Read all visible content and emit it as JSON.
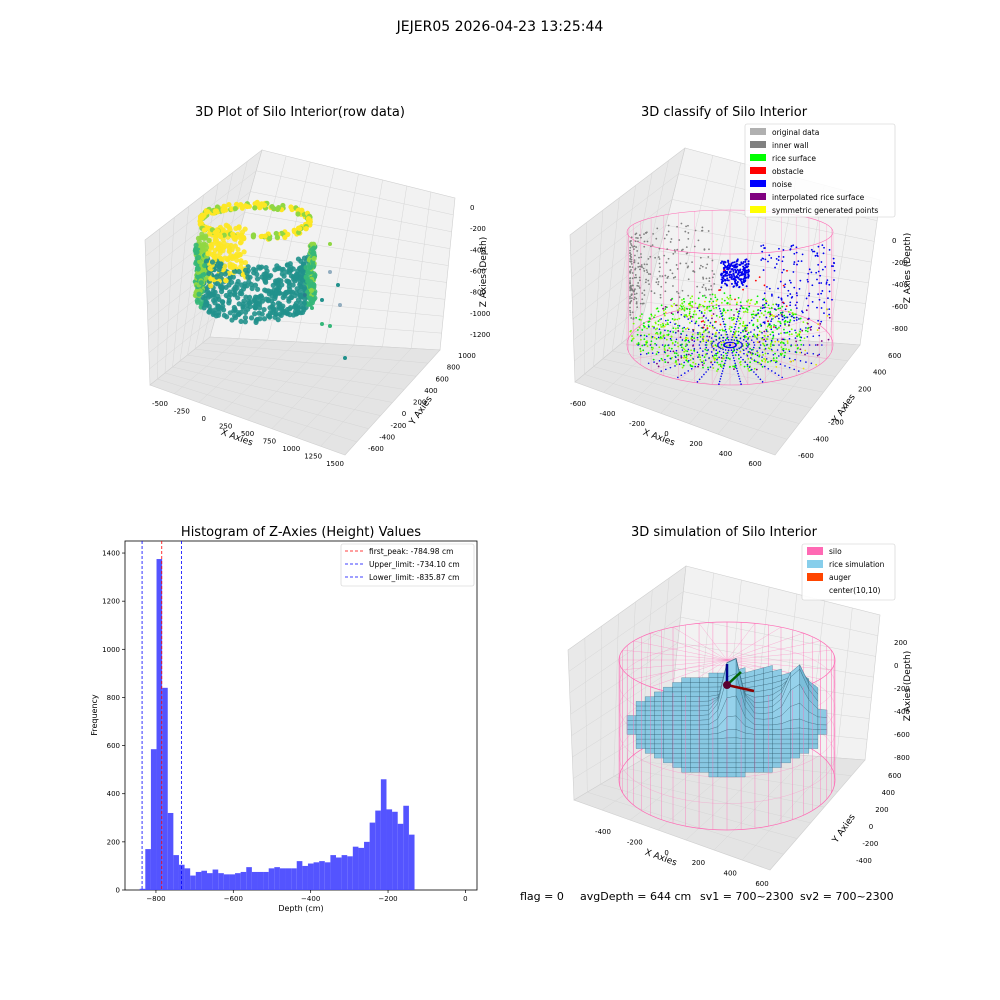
{
  "suptitle": "JEJER05 2026-04-23 13:25:44",
  "footer": {
    "flag": "flag = 0",
    "avg_depth": "avgDepth = 644 cm",
    "sv1": "sv1 = 700~2300",
    "sv2": "sv2 = 700~2300"
  },
  "chart_data": [
    {
      "id": "raw",
      "type": "scatter",
      "projection": "3d",
      "title": "3D Plot of Silo Interior(row data)",
      "xlabel": "X Axies",
      "ylabel": "Y Axies",
      "zlabel": "Z Axies (Depth)",
      "x_ticks": [
        -500,
        -250,
        0,
        250,
        500,
        750,
        1000,
        1250,
        1500
      ],
      "y_ticks": [
        -600,
        -400,
        -200,
        0,
        200,
        400,
        600,
        800,
        1000
      ],
      "z_ticks": [
        0,
        -200,
        -400,
        -600,
        -800,
        -1000,
        -1200
      ],
      "colormap": "viridis",
      "point_colors": [
        "#440154",
        "#31688e",
        "#21918c",
        "#35b779",
        "#90d743",
        "#fde725"
      ]
    },
    {
      "id": "classify",
      "type": "scatter",
      "projection": "3d",
      "title": "3D classify of Silo Interior",
      "xlabel": "X Axies",
      "ylabel": "Y Axies",
      "zlabel": "Z Axies (Depth)",
      "x_ticks": [
        -600,
        -400,
        -200,
        0,
        200,
        400,
        600
      ],
      "y_ticks": [
        -600,
        -400,
        -200,
        0,
        200,
        400,
        600
      ],
      "z_ticks": [
        0,
        -200,
        -400,
        -600,
        -800
      ],
      "legend_position": "upper-right",
      "legend": [
        {
          "label": "original data",
          "color": "#b0b0b0"
        },
        {
          "label": "inner wall",
          "color": "#808080"
        },
        {
          "label": "rice surface",
          "color": "#00ff00"
        },
        {
          "label": "obstacle",
          "color": "#ff0000"
        },
        {
          "label": "noise",
          "color": "#0000ff"
        },
        {
          "label": "interpolated rice surface",
          "color": "#800080"
        },
        {
          "label": "symmetric generated points",
          "color": "#ffff00"
        }
      ],
      "wire_color": "#ff69b4"
    },
    {
      "id": "hist",
      "type": "bar",
      "title": "Histogram of Z-Axies (Height) Values",
      "xlabel": "Depth (cm)",
      "ylabel": "Frequency",
      "xlim": [
        -880,
        30
      ],
      "ylim": [
        0,
        1450
      ],
      "x_ticks": [
        -800,
        -600,
        -400,
        -200,
        0
      ],
      "y_ticks": [
        0,
        200,
        400,
        600,
        800,
        1000,
        1200,
        1400
      ],
      "bar_color": "#4b4bff",
      "bin_width": 14.5,
      "bin_start": -842,
      "values": [
        5,
        170,
        585,
        1375,
        840,
        320,
        145,
        105,
        90,
        60,
        75,
        80,
        70,
        85,
        70,
        65,
        65,
        70,
        75,
        95,
        75,
        75,
        75,
        90,
        95,
        90,
        90,
        90,
        120,
        100,
        110,
        115,
        120,
        115,
        145,
        135,
        145,
        140,
        180,
        175,
        200,
        280,
        330,
        460,
        335,
        325,
        275,
        350,
        230
      ],
      "legend_position": "upper-right",
      "vlines": [
        {
          "label": "first_peak: -784.98 cm",
          "value": -784.98,
          "color": "#ff0000"
        },
        {
          "label": "Upper_limit: -734.10 cm",
          "value": -734.1,
          "color": "#0000ff"
        },
        {
          "label": "Lower_limit: -835.87 cm",
          "value": -835.87,
          "color": "#0000ff"
        }
      ]
    },
    {
      "id": "sim",
      "type": "surface",
      "projection": "3d",
      "title": "3D simulation of Silo Interior",
      "xlabel": "X Axies",
      "ylabel": "Y Axies",
      "zlabel": "Z Axies (Depth)",
      "x_ticks": [
        -400,
        -200,
        0,
        200,
        400,
        600
      ],
      "y_ticks": [
        -400,
        -200,
        0,
        200,
        400,
        600
      ],
      "z_ticks": [
        200,
        0,
        -200,
        -400,
        -600,
        -800
      ],
      "legend_position": "upper-right",
      "legend": [
        {
          "label": "silo",
          "color": "#ff69b4"
        },
        {
          "label": "rice simulation",
          "color": "#87ceeb"
        },
        {
          "label": "auger",
          "color": "#ff4500"
        },
        {
          "label": "center(10,10)",
          "color": ""
        }
      ]
    }
  ]
}
